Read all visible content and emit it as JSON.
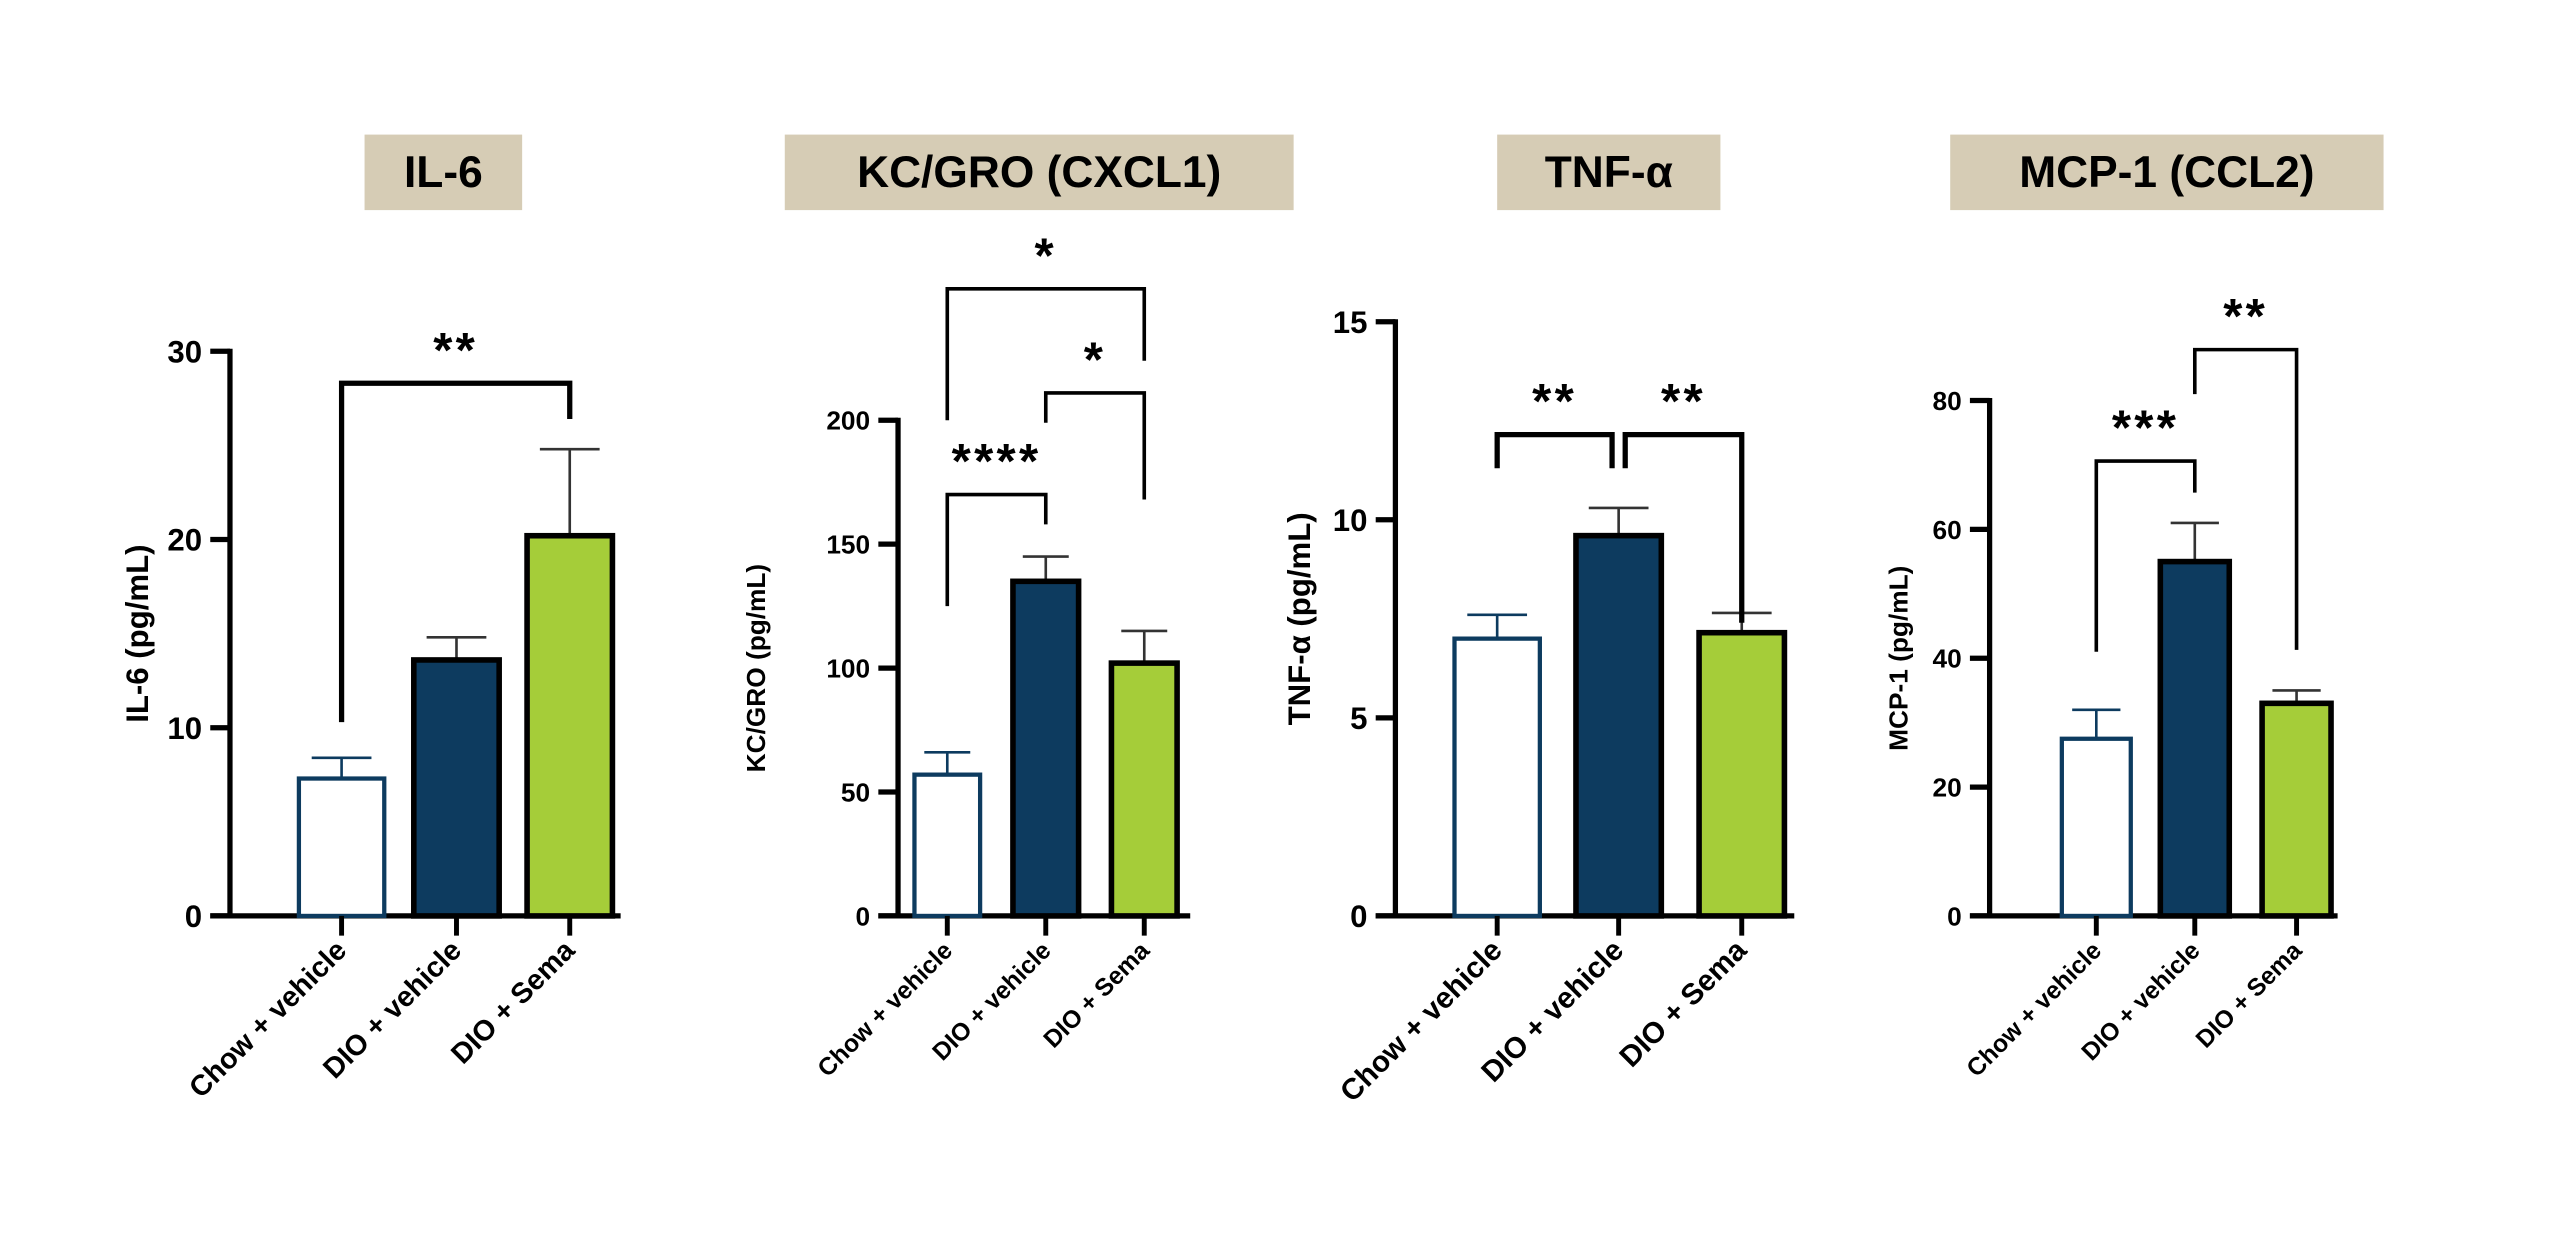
{
  "chart_data": [
    {
      "type": "bar",
      "title": "IL-6",
      "ylabel": "IL-6 (pg/mL)",
      "categories": [
        "Chow + vehicle",
        "DIO + vehicle",
        "DIO + Sema"
      ],
      "values": [
        7.3,
        13.6,
        20.2
      ],
      "error_upper": [
        8.4,
        14.8,
        24.8
      ],
      "ylim": [
        0,
        30
      ],
      "yticks": [
        0,
        10,
        20,
        30
      ],
      "comparisons": [
        {
          "from": 0,
          "to": 2,
          "y": 28.3,
          "left_end": 10.3,
          "right_end": 26.4,
          "label": "**"
        }
      ]
    },
    {
      "type": "bar",
      "title": "KC/GRO (CXCL1)",
      "ylabel": "KC/GRO (pg/mL)",
      "categories": [
        "Chow + vehicle",
        "DIO + vehicle",
        "DIO + Sema"
      ],
      "values": [
        57,
        135,
        102
      ],
      "error_upper": [
        66,
        145,
        115
      ],
      "ylim": [
        0,
        200
      ],
      "yticks": [
        0,
        50,
        100,
        150,
        200
      ],
      "comparisons": [
        {
          "from": 0,
          "to": 2,
          "y": 253,
          "left_end": 200,
          "right_end": 224,
          "label": "*"
        },
        {
          "from": 1,
          "to": 2,
          "y": 211,
          "left_end": 199,
          "right_end": 168,
          "label": "*"
        },
        {
          "from": 0,
          "to": 1,
          "y": 170,
          "left_end": 125,
          "right_end": 158,
          "label": "****"
        }
      ]
    },
    {
      "type": "bar",
      "title": "TNF-α",
      "ylabel": "TNF-α (pg/mL)",
      "categories": [
        "Chow + vehicle",
        "DIO + vehicle",
        "DIO + Sema"
      ],
      "values": [
        7.0,
        9.6,
        7.15
      ],
      "error_upper": [
        7.6,
        10.3,
        7.65
      ],
      "ylim": [
        0,
        15
      ],
      "yticks": [
        0,
        5,
        10,
        15
      ],
      "comparisons": [
        {
          "from": 0,
          "to": 1,
          "y": 12.15,
          "left_end": 11.3,
          "right_end": 11.3,
          "label": "**"
        },
        {
          "from": 1,
          "to": 2,
          "y": 12.15,
          "left_end": 11.3,
          "right_end": 7.4,
          "label": "**"
        }
      ]
    },
    {
      "type": "bar",
      "title": "MCP-1 (CCL2)",
      "ylabel": "MCP-1 (pg/mL)",
      "categories": [
        "Chow + vehicle",
        "DIO + vehicle",
        "DIO + Sema"
      ],
      "values": [
        27.5,
        55,
        33
      ],
      "error_upper": [
        32,
        61,
        35
      ],
      "ylim": [
        0,
        80
      ],
      "yticks": [
        0,
        20,
        40,
        60,
        80
      ],
      "comparisons": [
        {
          "from": 0,
          "to": 1,
          "y": 70.6,
          "left_end": 41,
          "right_end": 65.7,
          "label": "***"
        },
        {
          "from": 1,
          "to": 2,
          "y": 87.9,
          "left_end": 81,
          "right_end": 41.3,
          "label": "**"
        }
      ]
    }
  ],
  "colors": {
    "title_box": "#d6ccb5",
    "chow_vehicle_outline": "#0d3b5f",
    "dio_vehicle_fill": "#0d3b5f",
    "dio_sema_fill": "#a5cd39"
  }
}
